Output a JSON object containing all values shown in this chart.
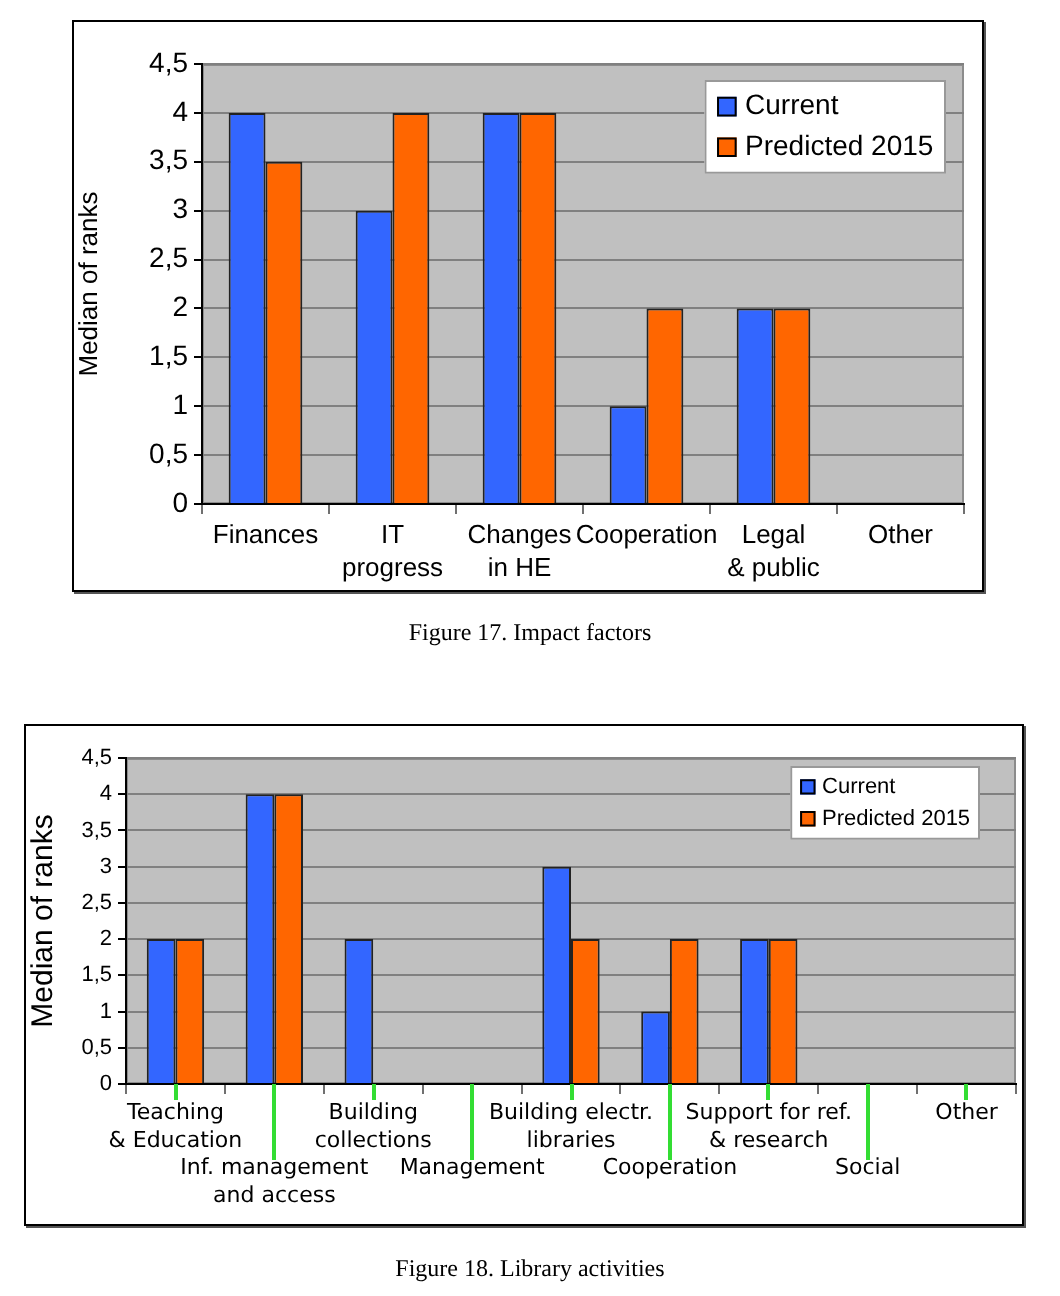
{
  "chart_data": [
    {
      "type": "bar",
      "title": "Figure 17. Impact factors",
      "ylabel": "Median of ranks",
      "categories": [
        "Finances",
        "IT progress",
        "Changes in HE",
        "Cooperation",
        "Legal & public",
        "Other"
      ],
      "series": [
        {
          "name": "Current",
          "color": "#3366ff",
          "values": [
            4,
            3,
            4,
            1,
            2,
            null
          ]
        },
        {
          "name": "Predicted 2015",
          "color": "#ff6600",
          "values": [
            3.5,
            4,
            4,
            2,
            2,
            null
          ]
        }
      ],
      "ylim": [
        0,
        4.5
      ],
      "yticks": [
        0,
        {
          "value": 0.5,
          "label": "0,5"
        },
        1,
        {
          "value": 1.5,
          "label": "1,5"
        },
        2,
        {
          "value": 2.5,
          "label": "2,5"
        },
        3,
        {
          "value": 3.5,
          "label": "3,5"
        },
        4,
        {
          "value": 4.5,
          "label": "4,5"
        }
      ],
      "grid": "y",
      "legend": "top right"
    },
    {
      "type": "bar",
      "title": "Figure 18. Library activities",
      "ylabel": "Median of ranks",
      "categories": [
        "Teaching & Education",
        "Inf. management and access",
        "Building collections",
        "Management",
        "Building electr. libraries",
        "Cooperation",
        "Support for ref. & research",
        "Social",
        "Other"
      ],
      "series": [
        {
          "name": "Current",
          "color": "#3366ff",
          "values": [
            2,
            4,
            2,
            null,
            3,
            1,
            2,
            null,
            null
          ]
        },
        {
          "name": "Predicted 2015",
          "color": "#ff6600",
          "values": [
            2,
            4,
            null,
            null,
            2,
            2,
            2,
            null,
            null
          ]
        }
      ],
      "ylim": [
        0,
        4.5
      ],
      "yticks": [
        0,
        {
          "value": 0.5,
          "label": "0,5"
        },
        1,
        {
          "value": 1.5,
          "label": "1,5"
        },
        2,
        {
          "value": 2.5,
          "label": "2,5"
        },
        3,
        {
          "value": 3.5,
          "label": "3,5"
        },
        4,
        {
          "value": 4.5,
          "label": "4,5"
        }
      ],
      "grid": "y",
      "legend": "top right"
    }
  ]
}
